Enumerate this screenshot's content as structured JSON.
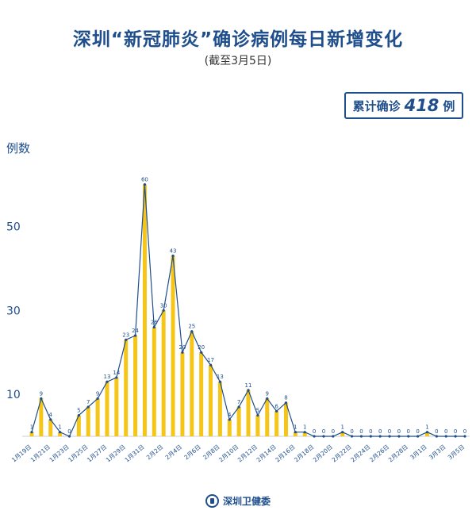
{
  "header": {
    "title": "深圳“新冠肺炎”确诊病例每日新增变化",
    "subtitle": "(截至3月5日)",
    "total_prefix": "累计确诊",
    "total_value": "418",
    "total_suffix": "例"
  },
  "footer": {
    "org_name": "深圳卫健委",
    "logo_icon": "health-commission-logo-icon"
  },
  "colors": {
    "bar": "#f5c518",
    "line": "#1f4e8c",
    "text": "#1f4e8c",
    "axis": "#cccccc"
  },
  "chart_data": {
    "type": "bar",
    "ylabel": "例数",
    "yticks": [
      10,
      30,
      50
    ],
    "ylim": [
      0,
      62
    ],
    "grid": false,
    "x": [
      "1月19日",
      "1月20日",
      "1月21日",
      "1月22日",
      "1月23日",
      "1月24日",
      "1月25日",
      "1月26日",
      "1月27日",
      "1月28日",
      "1月29日",
      "1月30日",
      "1月31日",
      "2月1日",
      "2月2日",
      "2月3日",
      "2月4日",
      "2月5日",
      "2月6日",
      "2月7日",
      "2月8日",
      "2月9日",
      "2月10日",
      "2月11日",
      "2月12日",
      "2月13日",
      "2月14日",
      "2月15日",
      "2月16日",
      "2月17日",
      "2月18日",
      "2月19日",
      "2月20日",
      "2月21日",
      "2月22日",
      "2月23日",
      "2月24日",
      "2月25日",
      "2月26日",
      "2月27日",
      "2月28日",
      "2月29日",
      "3月1日",
      "3月2日",
      "3月3日",
      "3月4日",
      "3月5日"
    ],
    "xtick_labels": [
      "1月19日",
      "1月21日",
      "1月23日",
      "1月25日",
      "1月27日",
      "1月29日",
      "1月31日",
      "2月2日",
      "2月4日",
      "2月6日",
      "2月8日",
      "2月10日",
      "2月12日",
      "2月14日",
      "2月16日",
      "2月18日",
      "2月20日",
      "2月22日",
      "2月24日",
      "2月26日",
      "2月28日",
      "3月1日",
      "3月3日",
      "3月5日"
    ],
    "values": [
      1,
      9,
      4,
      1,
      0,
      5,
      7,
      9,
      13,
      14,
      23,
      24,
      60,
      26,
      30,
      43,
      20,
      25,
      20,
      17,
      13,
      4,
      7,
      11,
      5,
      9,
      6,
      8,
      1,
      1,
      0,
      0,
      0,
      1,
      0,
      0,
      0,
      0,
      0,
      0,
      0,
      0,
      1,
      0,
      0,
      0,
      0
    ],
    "data_labels": [
      "1",
      "9",
      "4",
      "1",
      "0",
      "5",
      "7",
      "9",
      "13",
      "14",
      "23",
      "24",
      "60",
      "26",
      "30",
      "43",
      "20",
      "25",
      "20",
      "17",
      "13",
      "4",
      "7",
      "11",
      "5",
      "9",
      "6",
      "8",
      "1",
      "1",
      "0",
      "0",
      "0",
      "1",
      "0",
      "0",
      "0",
      "0",
      "0",
      "0",
      "0",
      "0",
      "1",
      "0",
      "0",
      "0",
      "0"
    ]
  }
}
